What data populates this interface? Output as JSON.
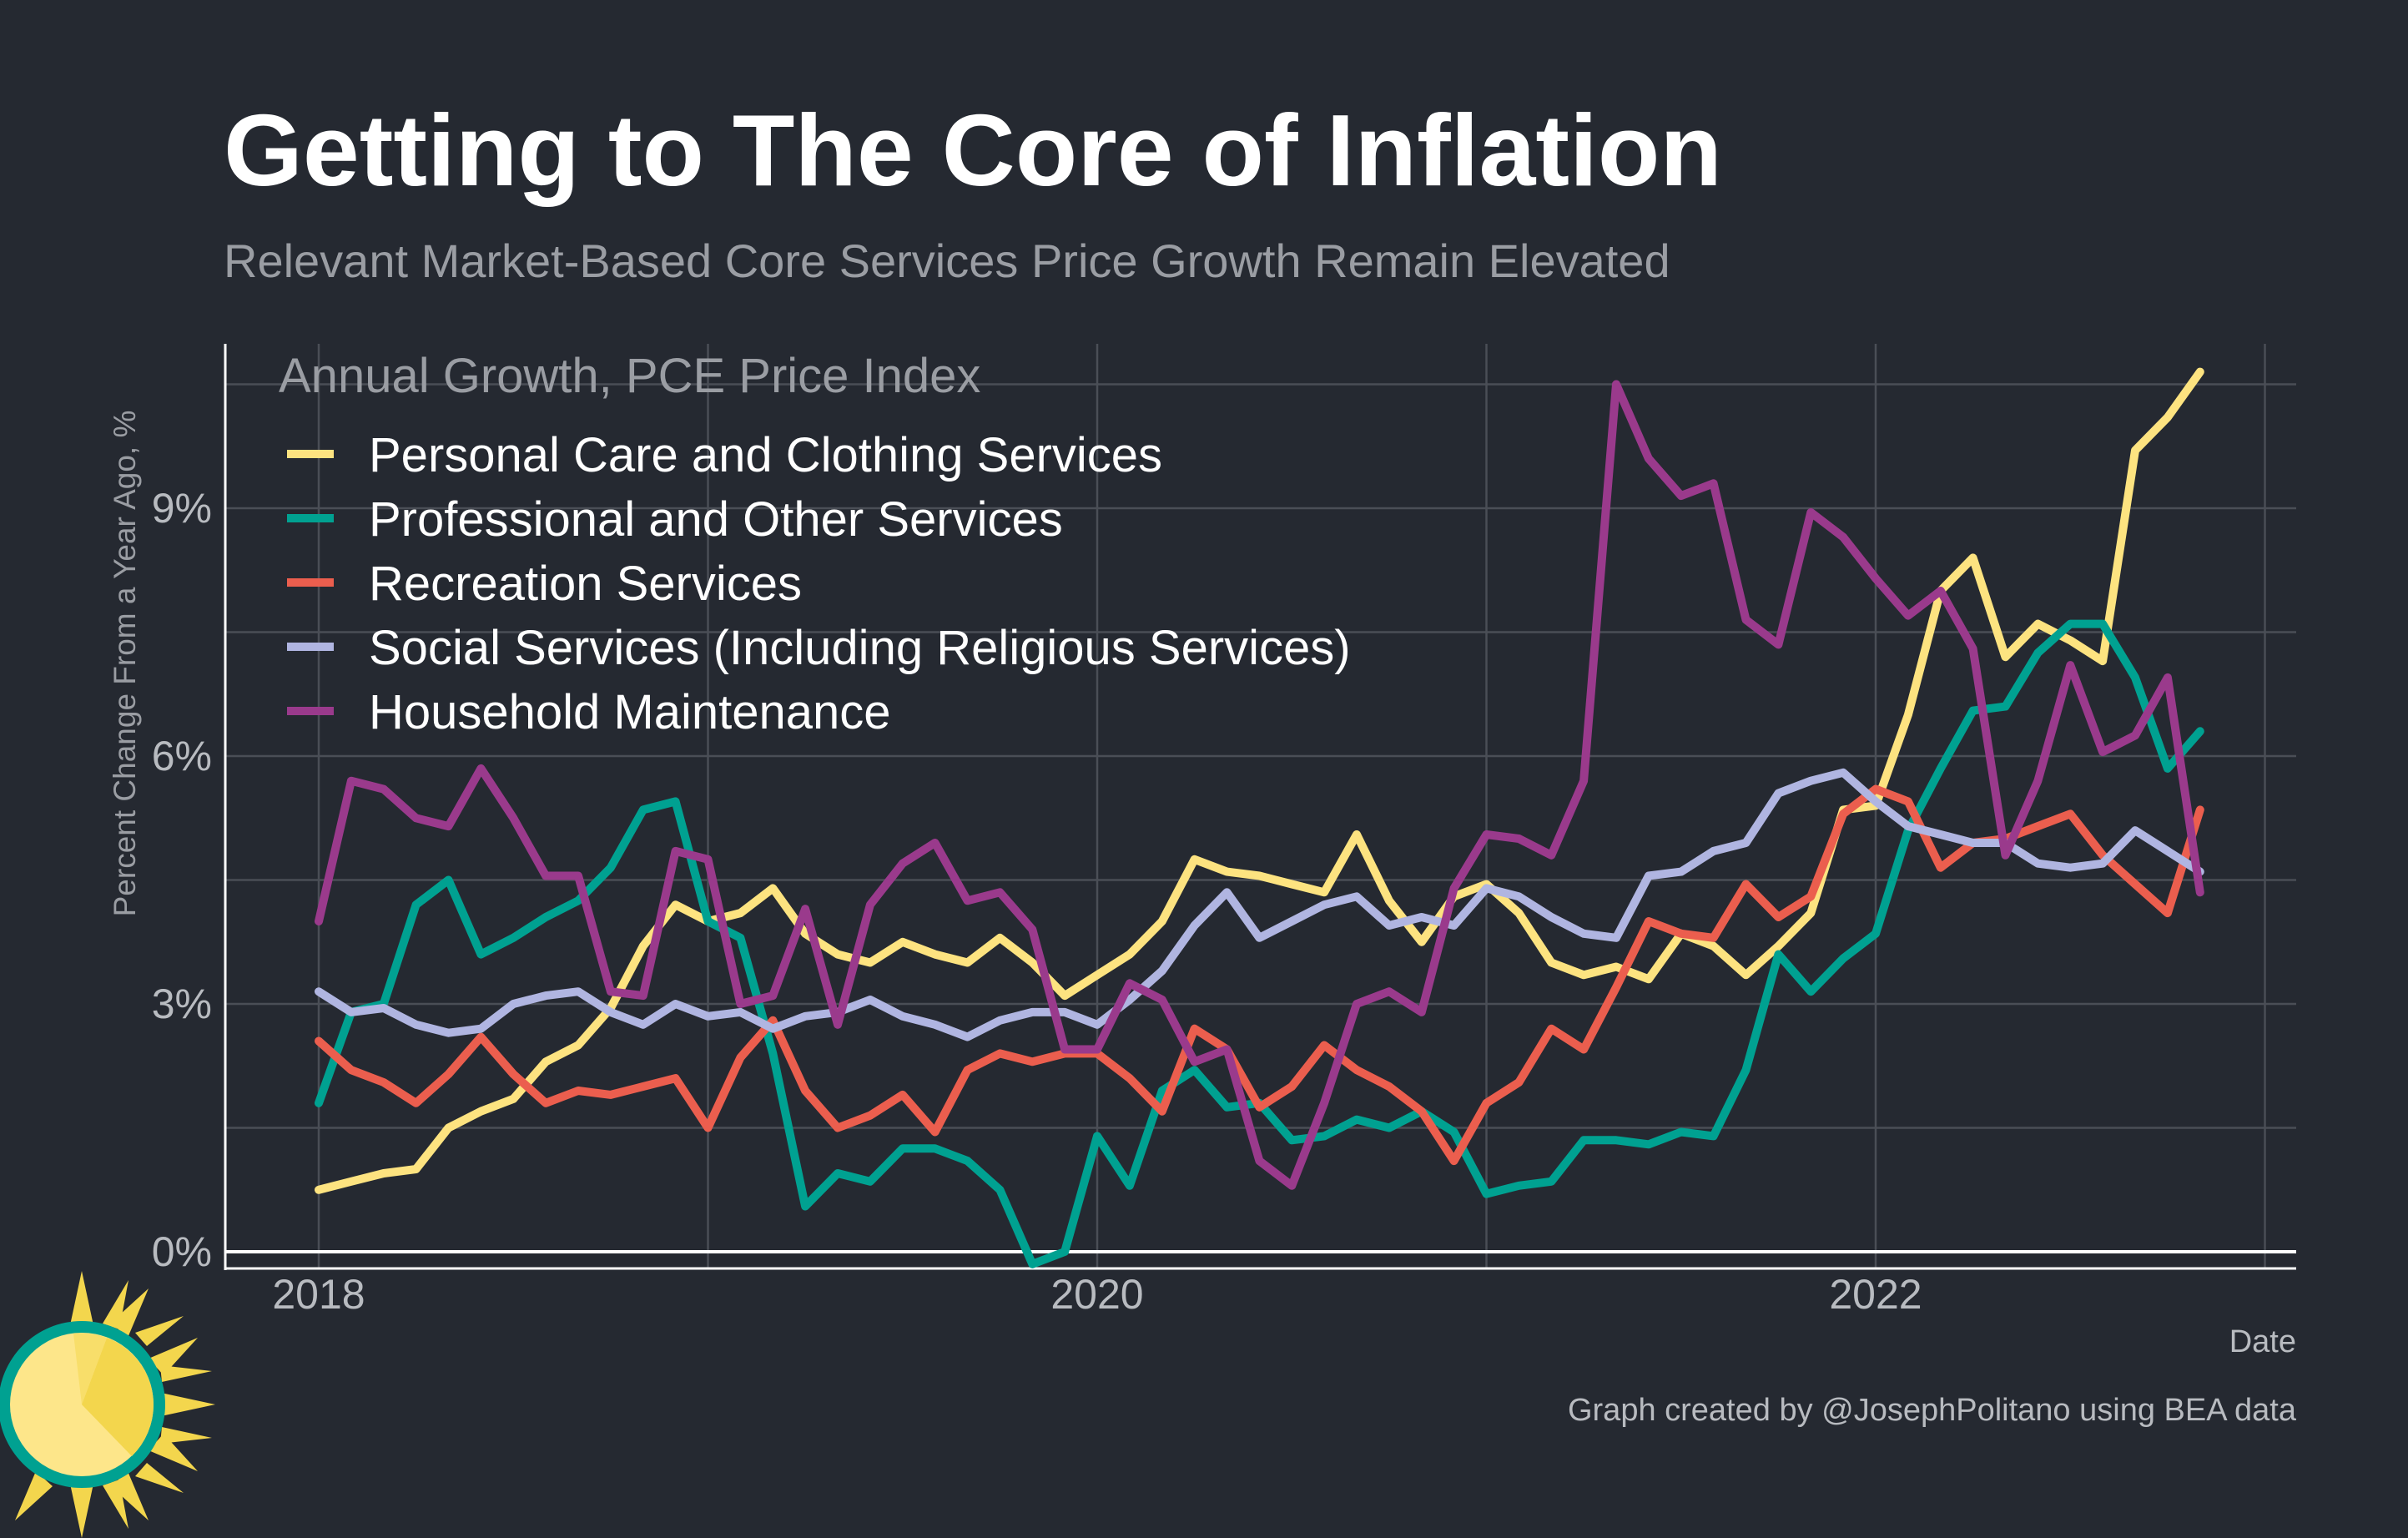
{
  "chart_data": {
    "type": "line",
    "title": "Getting to The Core of Inflation",
    "subtitle": "Relevant Market-Based Core Services Price Growth Remain Elevated",
    "legend_title": "Annual Growth, PCE Price Index",
    "xlabel": "Date",
    "ylabel": "Percent Change From a Year Ago, %",
    "caption": "Graph created by @JosephPolitano using BEA data",
    "x_start": "2018-01",
    "x_ticks": [
      "2018",
      "2020",
      "2022"
    ],
    "y_ticks": [
      "0%",
      "3%",
      "6%",
      "9%"
    ],
    "ylim": [
      -0.2,
      11
    ],
    "grid": true,
    "legend_position": "top-left",
    "series": [
      {
        "name": "Personal Care and Clothing Services",
        "color": "#fde380",
        "values": [
          0.75,
          0.85,
          0.95,
          1.0,
          1.5,
          1.7,
          1.85,
          2.3,
          2.5,
          2.95,
          3.7,
          4.2,
          4.0,
          4.1,
          4.4,
          3.85,
          3.6,
          3.5,
          3.75,
          3.6,
          3.5,
          3.8,
          3.5,
          3.1,
          3.35,
          3.6,
          4.0,
          4.75,
          4.6,
          4.55,
          4.45,
          4.35,
          5.05,
          4.25,
          3.75,
          4.3,
          4.45,
          4.1,
          3.5,
          3.35,
          3.45,
          3.3,
          3.85,
          3.7,
          3.35,
          3.7,
          4.1,
          5.35,
          5.4,
          6.5,
          8.0,
          8.4,
          7.2,
          7.6,
          7.4,
          7.15,
          9.7,
          10.1,
          10.65
        ]
      },
      {
        "name": "Professional and Other Services",
        "color": "#00a191",
        "values": [
          1.8,
          2.9,
          3.0,
          4.2,
          4.5,
          3.6,
          3.8,
          4.05,
          4.25,
          4.65,
          5.35,
          5.45,
          4.0,
          3.8,
          2.4,
          0.55,
          0.95,
          0.85,
          1.25,
          1.25,
          1.1,
          0.75,
          -0.15,
          0.0,
          1.4,
          0.8,
          1.95,
          2.2,
          1.75,
          1.8,
          1.35,
          1.4,
          1.6,
          1.5,
          1.7,
          1.45,
          0.7,
          0.8,
          0.85,
          1.35,
          1.35,
          1.3,
          1.45,
          1.4,
          2.2,
          3.6,
          3.15,
          3.55,
          3.85,
          5.1,
          5.85,
          6.55,
          6.6,
          7.25,
          7.6,
          7.6,
          6.95,
          5.85,
          6.3
        ]
      },
      {
        "name": "Recreation Services",
        "color": "#eb5e4e",
        "values": [
          2.55,
          2.2,
          2.05,
          1.8,
          2.15,
          2.6,
          2.15,
          1.8,
          1.95,
          1.9,
          2.0,
          2.1,
          1.5,
          2.35,
          2.8,
          1.95,
          1.5,
          1.65,
          1.9,
          1.45,
          2.2,
          2.4,
          2.3,
          2.4,
          2.4,
          2.1,
          1.7,
          2.7,
          2.45,
          1.75,
          2.0,
          2.5,
          2.2,
          2.0,
          1.7,
          1.1,
          1.8,
          2.05,
          2.7,
          2.45,
          3.2,
          4.0,
          3.85,
          3.8,
          4.45,
          4.05,
          4.3,
          5.3,
          5.6,
          5.45,
          4.65,
          4.95,
          5.0,
          5.15,
          5.3,
          4.8,
          4.45,
          4.1,
          5.35
        ]
      },
      {
        "name": "Social Services (Including Religious Services)",
        "color": "#b0b5e1",
        "values": [
          3.15,
          2.9,
          2.95,
          2.75,
          2.65,
          2.7,
          3.0,
          3.1,
          3.15,
          2.9,
          2.75,
          3.0,
          2.85,
          2.9,
          2.7,
          2.85,
          2.9,
          3.05,
          2.85,
          2.75,
          2.6,
          2.8,
          2.9,
          2.9,
          2.75,
          3.05,
          3.4,
          3.95,
          4.35,
          3.8,
          4.0,
          4.2,
          4.3,
          3.95,
          4.05,
          3.95,
          4.4,
          4.3,
          4.05,
          3.85,
          3.8,
          4.55,
          4.6,
          4.85,
          4.95,
          5.55,
          5.7,
          5.8,
          5.45,
          5.15,
          5.05,
          4.95,
          4.95,
          4.7,
          4.65,
          4.7,
          5.1,
          4.85,
          4.6
        ]
      },
      {
        "name": "Household Maintenance",
        "color": "#9a3a8c",
        "values": [
          4.0,
          5.7,
          5.6,
          5.25,
          5.15,
          5.85,
          5.25,
          4.55,
          4.55,
          3.15,
          3.1,
          4.85,
          4.75,
          3.0,
          3.1,
          4.15,
          2.75,
          4.2,
          4.7,
          4.95,
          4.25,
          4.35,
          3.9,
          2.45,
          2.45,
          3.25,
          3.05,
          2.3,
          2.45,
          1.1,
          0.8,
          1.8,
          3.0,
          3.15,
          2.9,
          4.4,
          5.05,
          5.0,
          4.8,
          5.7,
          10.5,
          9.6,
          9.15,
          9.3,
          7.65,
          7.35,
          8.95,
          8.65,
          8.15,
          7.7,
          8.0,
          7.3,
          4.8,
          5.7,
          7.1,
          6.05,
          6.25,
          6.95,
          4.35
        ]
      }
    ]
  }
}
